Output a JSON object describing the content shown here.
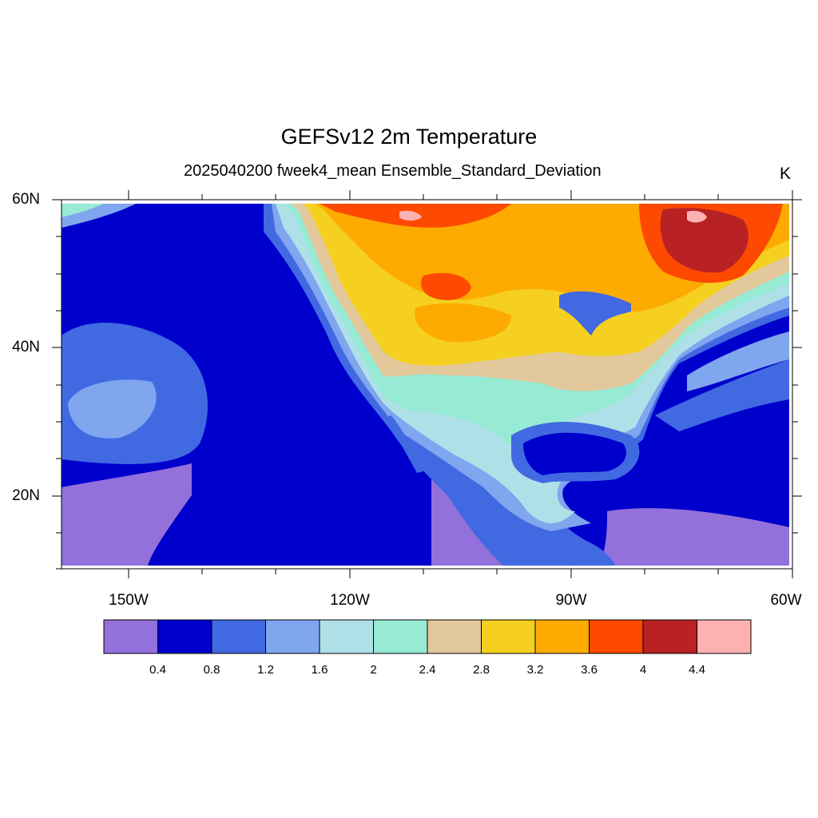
{
  "title": "GEFSv12 2m Temperature",
  "subtitle": "2025040200 fweek4_mean Ensemble_Standard_Deviation",
  "units": "K",
  "lat_labels": [
    "60N",
    "40N",
    "20N"
  ],
  "lon_labels": [
    "150W",
    "120W",
    "90W",
    "60W"
  ],
  "colorbar": {
    "labels": [
      "0.4",
      "0.8",
      "1.2",
      "1.6",
      "2",
      "2.4",
      "2.8",
      "3.2",
      "3.6",
      "4",
      "4.4"
    ],
    "colors": [
      "#9370db",
      "#0000cd",
      "#4169e1",
      "#7fa6ee",
      "#afe0e8",
      "#97ead4",
      "#e2c89a",
      "#f5d020",
      "#fdab00",
      "#fd4a00",
      "#b82224",
      "#fdb1b1"
    ]
  },
  "map": {
    "region": "North America and adjacent oceans",
    "lon_range": [
      -160,
      -60
    ],
    "lat_range": [
      10,
      60
    ],
    "max_values_region": "Northern Canada",
    "min_values_region": "Tropical Pacific and Caribbean"
  }
}
